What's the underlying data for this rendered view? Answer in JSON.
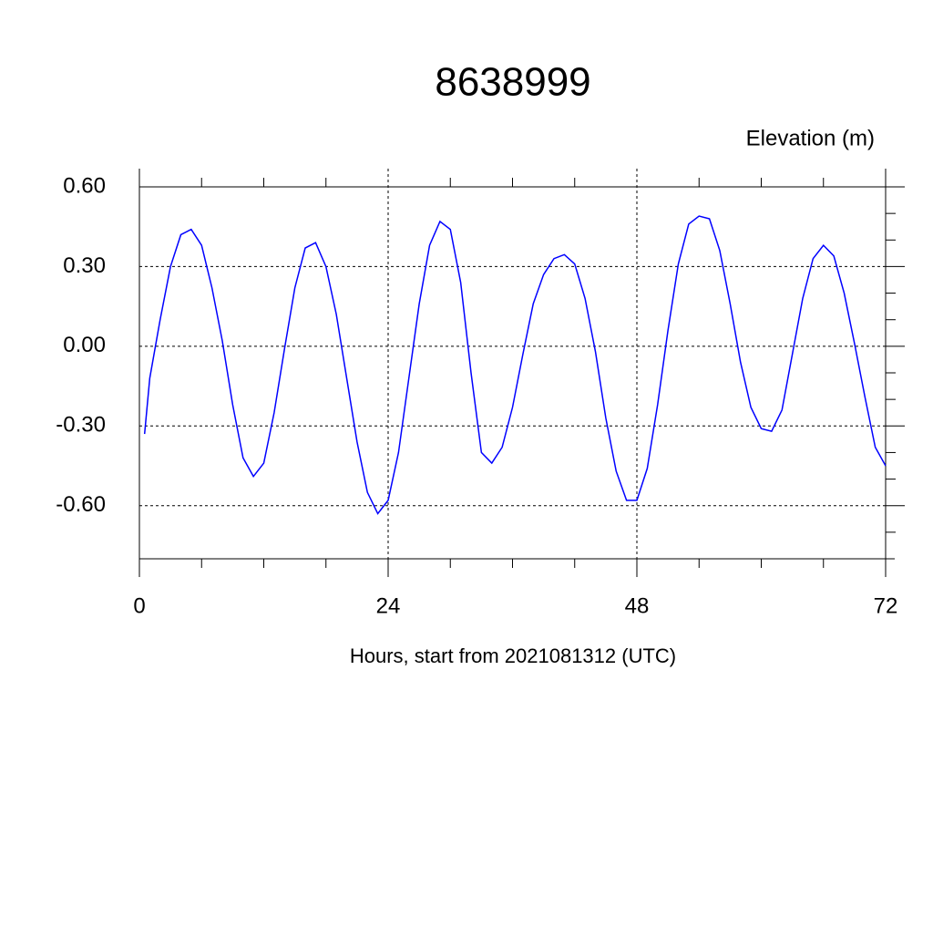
{
  "chart_data": {
    "type": "line",
    "title": "8638999",
    "y_label": "Elevation (m)",
    "x_label": "Hours, start from 2021081312 (UTC)",
    "x": [
      0.5,
      1,
      2,
      3,
      4,
      5,
      6,
      7,
      8,
      9,
      10,
      11,
      12,
      13,
      14,
      15,
      16,
      17,
      18,
      19,
      20,
      21,
      22,
      23,
      24,
      25,
      26,
      27,
      28,
      29,
      30,
      31,
      32,
      33,
      34,
      35,
      36,
      37,
      38,
      39,
      40,
      41,
      42,
      43,
      44,
      45,
      46,
      47,
      48,
      49,
      50,
      51,
      52,
      53,
      54,
      55,
      56,
      57,
      58,
      59,
      60,
      61,
      62,
      63,
      64,
      65,
      66,
      67,
      68,
      69,
      70,
      71,
      72
    ],
    "series": [
      {
        "color": "#0000ff",
        "values": [
          -0.33,
          -0.12,
          0.1,
          0.3,
          0.42,
          0.44,
          0.38,
          0.22,
          0.02,
          -0.22,
          -0.42,
          -0.49,
          -0.44,
          -0.25,
          -0.01,
          0.22,
          0.37,
          0.39,
          0.3,
          0.12,
          -0.12,
          -0.36,
          -0.55,
          -0.63,
          -0.58,
          -0.4,
          -0.12,
          0.16,
          0.38,
          0.47,
          0.44,
          0.24,
          -0.1,
          -0.4,
          -0.44,
          -0.38,
          -0.23,
          -0.03,
          0.16,
          0.27,
          0.33,
          0.345,
          0.31,
          0.18,
          -0.02,
          -0.27,
          -0.47,
          -0.58,
          -0.58,
          -0.46,
          -0.22,
          0.06,
          0.31,
          0.46,
          0.49,
          0.48,
          0.36,
          0.16,
          -0.06,
          -0.23,
          -0.31,
          -0.32,
          -0.24,
          -0.03,
          0.18,
          0.33,
          0.38,
          0.34,
          0.2,
          0.01,
          -0.19,
          -0.38,
          -0.45
        ]
      }
    ],
    "xlim": [
      0,
      72
    ],
    "xticks": [
      0,
      24,
      48,
      72
    ],
    "xminorticks": [
      6,
      12,
      18,
      30,
      36,
      42,
      54,
      60,
      66
    ],
    "ylim": [
      -0.8,
      0.6
    ],
    "yticks": [
      {
        "value": 0.6,
        "label": "0.60"
      },
      {
        "value": 0.3,
        "label": "0.30"
      },
      {
        "value": 0,
        "label": "0.00"
      },
      {
        "value": -0.3,
        "label": "-0.30"
      },
      {
        "value": -0.6,
        "label": "-0.60"
      }
    ],
    "yminorticks": [
      0.5,
      0.4,
      0.2,
      0.1,
      -0.1,
      -0.2,
      -0.4,
      -0.5,
      -0.7
    ],
    "grid": true
  }
}
